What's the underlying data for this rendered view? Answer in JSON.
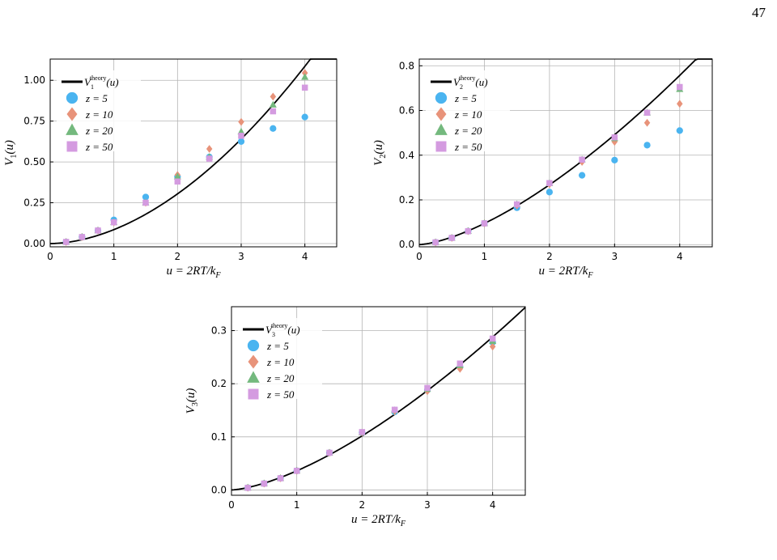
{
  "page_number": "47",
  "colors": {
    "theory": "#000000",
    "z5": "#4AB4F0",
    "z10": "#E8937A",
    "z20": "#74B97E",
    "z50": "#D49BE0",
    "grid": "#b5b5b5"
  },
  "chart_data": [
    {
      "type": "scatter",
      "ylabel": "V_1(u)",
      "xlabel": "u = 2RT/k_F",
      "xlim": [
        0,
        4.5
      ],
      "ylim": [
        -0.02,
        1.13
      ],
      "xticks": [
        0,
        1,
        2,
        3,
        4
      ],
      "xtick_labels": [
        "0",
        "1",
        "2",
        "3",
        "4"
      ],
      "yticks": [
        0,
        0.25,
        0.5,
        0.75,
        1.0
      ],
      "ytick_labels": [
        "0.00",
        "0.25",
        "0.50",
        "0.75",
        "1.00"
      ],
      "grid": true,
      "legend_position": "top-left",
      "legend": [
        "V_1^theory(u)",
        "z = 5",
        "z = 10",
        "z = 20",
        "z = 50"
      ],
      "theory": {
        "name": "V_1^theory(u)",
        "coef": 0.0853,
        "exp": 1.835,
        "x_range": [
          0,
          4.5
        ]
      },
      "series": [
        {
          "name": "z = 5",
          "marker": "circle",
          "x": [
            0.25,
            0.5,
            0.75,
            1.0,
            1.5,
            2.0,
            2.5,
            3.0,
            3.5,
            4.0
          ],
          "y": [
            0.01,
            0.04,
            0.08,
            0.145,
            0.285,
            0.41,
            0.53,
            0.625,
            0.705,
            0.775
          ]
        },
        {
          "name": "z = 10",
          "marker": "diamond",
          "x": [
            0.25,
            0.5,
            0.75,
            1.0,
            1.5,
            2.0,
            2.5,
            3.0,
            3.5,
            4.0
          ],
          "y": [
            0.01,
            0.04,
            0.08,
            0.13,
            0.25,
            0.42,
            0.58,
            0.745,
            0.9,
            1.045
          ]
        },
        {
          "name": "z = 20",
          "marker": "triangle",
          "x": [
            0.25,
            0.5,
            0.75,
            1.0,
            1.5,
            2.0,
            2.5,
            3.0,
            3.5,
            4.0
          ],
          "y": [
            0.01,
            0.04,
            0.08,
            0.13,
            0.25,
            0.41,
            0.53,
            0.685,
            0.85,
            1.02
          ]
        },
        {
          "name": "z = 50",
          "marker": "square",
          "x": [
            0.25,
            0.5,
            0.75,
            1.0,
            1.5,
            2.0,
            2.5,
            3.0,
            3.5,
            4.0
          ],
          "y": [
            0.01,
            0.04,
            0.08,
            0.13,
            0.25,
            0.38,
            0.52,
            0.66,
            0.81,
            0.955
          ]
        }
      ]
    },
    {
      "type": "scatter",
      "ylabel": "V_2(u)",
      "xlabel": "u = 2RT/k_F",
      "xlim": [
        0,
        4.5
      ],
      "ylim": [
        -0.01,
        0.83
      ],
      "xticks": [
        0,
        1,
        2,
        3,
        4
      ],
      "xtick_labels": [
        "0",
        "1",
        "2",
        "3",
        "4"
      ],
      "yticks": [
        0,
        0.2,
        0.4,
        0.6,
        0.8
      ],
      "ytick_labels": [
        "0.0",
        "0.2",
        "0.4",
        "0.6",
        "0.8"
      ],
      "grid": true,
      "legend_position": "top-left",
      "legend": [
        "V_2^theory(u)",
        "z = 5",
        "z = 10",
        "z = 20",
        "z = 50"
      ],
      "theory": {
        "name": "V_2^theory(u)",
        "coef": 0.0946,
        "exp": 1.5,
        "x_range": [
          0,
          4.5
        ]
      },
      "series": [
        {
          "name": "z = 5",
          "marker": "circle",
          "x": [
            0.25,
            0.5,
            0.75,
            1.0,
            1.5,
            2.0,
            2.5,
            3.0,
            3.5,
            4.0
          ],
          "y": [
            0.01,
            0.03,
            0.06,
            0.095,
            0.165,
            0.235,
            0.31,
            0.378,
            0.445,
            0.51
          ]
        },
        {
          "name": "z = 10",
          "marker": "diamond",
          "x": [
            0.25,
            0.5,
            0.75,
            1.0,
            1.5,
            2.0,
            2.5,
            3.0,
            3.5,
            4.0
          ],
          "y": [
            0.01,
            0.03,
            0.06,
            0.095,
            0.175,
            0.27,
            0.37,
            0.46,
            0.545,
            0.63
          ]
        },
        {
          "name": "z = 20",
          "marker": "triangle",
          "x": [
            0.25,
            0.5,
            0.75,
            1.0,
            1.5,
            2.0,
            2.5,
            3.0,
            3.5,
            4.0
          ],
          "y": [
            0.01,
            0.03,
            0.06,
            0.095,
            0.18,
            0.275,
            0.38,
            0.475,
            0.59,
            0.695
          ]
        },
        {
          "name": "z = 50",
          "marker": "square",
          "x": [
            0.25,
            0.5,
            0.75,
            1.0,
            1.5,
            2.0,
            2.5,
            3.0,
            3.5,
            4.0
          ],
          "y": [
            0.01,
            0.03,
            0.06,
            0.095,
            0.18,
            0.275,
            0.38,
            0.48,
            0.59,
            0.705
          ]
        }
      ]
    },
    {
      "type": "scatter",
      "ylabel": "V_3(u)",
      "xlabel": "u = 2RT/k_F",
      "xlim": [
        0,
        4.5
      ],
      "ylim": [
        -0.01,
        0.345
      ],
      "xticks": [
        0,
        1,
        2,
        3,
        4
      ],
      "xtick_labels": [
        "0",
        "1",
        "2",
        "3",
        "4"
      ],
      "yticks": [
        0,
        0.1,
        0.2,
        0.3
      ],
      "ytick_labels": [
        "0.0",
        "0.1",
        "0.2",
        "0.3"
      ],
      "grid": true,
      "legend_position": "top-left",
      "legend": [
        "V_3^theory(u)",
        "z = 5",
        "z = 10",
        "z = 20",
        "z = 50"
      ],
      "theory": {
        "name": "V_3^theory(u)",
        "coef": 0.036,
        "exp": 1.5,
        "x_range": [
          0,
          4.5
        ]
      },
      "series": [
        {
          "name": "z = 5",
          "marker": "circle",
          "x": [
            0.25,
            0.5,
            0.75,
            1.0,
            1.5,
            2.0,
            2.5,
            3.0,
            3.5,
            4.0
          ],
          "y": [
            0.004,
            0.012,
            0.022,
            0.036,
            0.07,
            0.108,
            0.147,
            0.188,
            0.232,
            0.278
          ]
        },
        {
          "name": "z = 10",
          "marker": "diamond",
          "x": [
            0.25,
            0.5,
            0.75,
            1.0,
            1.5,
            2.0,
            2.5,
            3.0,
            3.5,
            4.0
          ],
          "y": [
            0.004,
            0.012,
            0.022,
            0.036,
            0.07,
            0.108,
            0.148,
            0.186,
            0.228,
            0.27
          ]
        },
        {
          "name": "z = 20",
          "marker": "triangle",
          "x": [
            0.25,
            0.5,
            0.75,
            1.0,
            1.5,
            2.0,
            2.5,
            3.0,
            3.5,
            4.0
          ],
          "y": [
            0.004,
            0.012,
            0.022,
            0.036,
            0.07,
            0.108,
            0.15,
            0.19,
            0.235,
            0.28
          ]
        },
        {
          "name": "z = 50",
          "marker": "square",
          "x": [
            0.25,
            0.5,
            0.75,
            1.0,
            1.5,
            2.0,
            2.5,
            3.0,
            3.5,
            4.0
          ],
          "y": [
            0.004,
            0.012,
            0.022,
            0.036,
            0.07,
            0.109,
            0.151,
            0.192,
            0.238,
            0.285
          ]
        }
      ]
    }
  ]
}
